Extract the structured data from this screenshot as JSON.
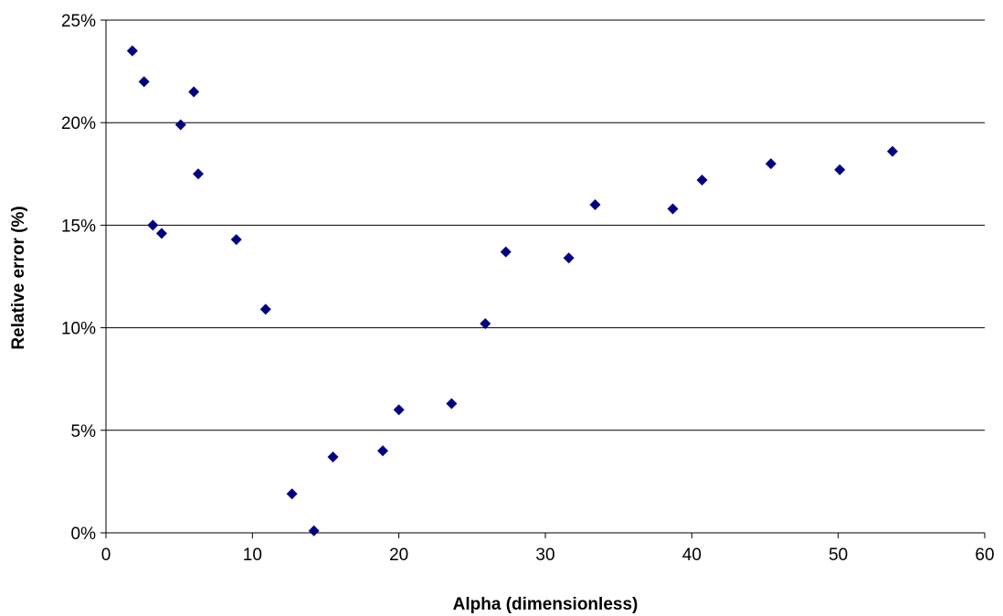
{
  "chart_data": {
    "type": "scatter",
    "title": "",
    "xlabel": "Alpha (dimensionless)",
    "ylabel": "Relative error (%)",
    "xlim": [
      0,
      60
    ],
    "ylim": [
      0,
      25
    ],
    "x_ticks": [
      0,
      10,
      20,
      30,
      40,
      50,
      60
    ],
    "y_ticks": [
      0,
      5,
      10,
      15,
      20,
      25
    ],
    "x_tick_labels": [
      "0",
      "10",
      "20",
      "30",
      "40",
      "50",
      "60"
    ],
    "y_tick_labels": [
      "0%",
      "5%",
      "10%",
      "15%",
      "20%",
      "25%"
    ],
    "grid": "horizontal major gridlines",
    "legend": "none",
    "marker": "diamond",
    "marker_color": "#000080",
    "series": [
      {
        "x": [
          1.8,
          2.6,
          3.2,
          3.8,
          5.1,
          6.0,
          6.3,
          8.9,
          10.9,
          12.7,
          14.2,
          15.5,
          18.9,
          20.0,
          23.6,
          25.9,
          27.3,
          31.6,
          33.4,
          38.7,
          40.7,
          45.4,
          50.1,
          53.7
        ],
        "y": [
          23.5,
          22.0,
          15.0,
          14.6,
          19.9,
          21.5,
          17.5,
          14.3,
          10.9,
          1.9,
          0.1,
          3.7,
          4.0,
          6.0,
          6.3,
          10.2,
          13.7,
          13.4,
          16.0,
          15.8,
          17.2,
          18.0,
          17.7,
          18.6
        ]
      }
    ]
  }
}
